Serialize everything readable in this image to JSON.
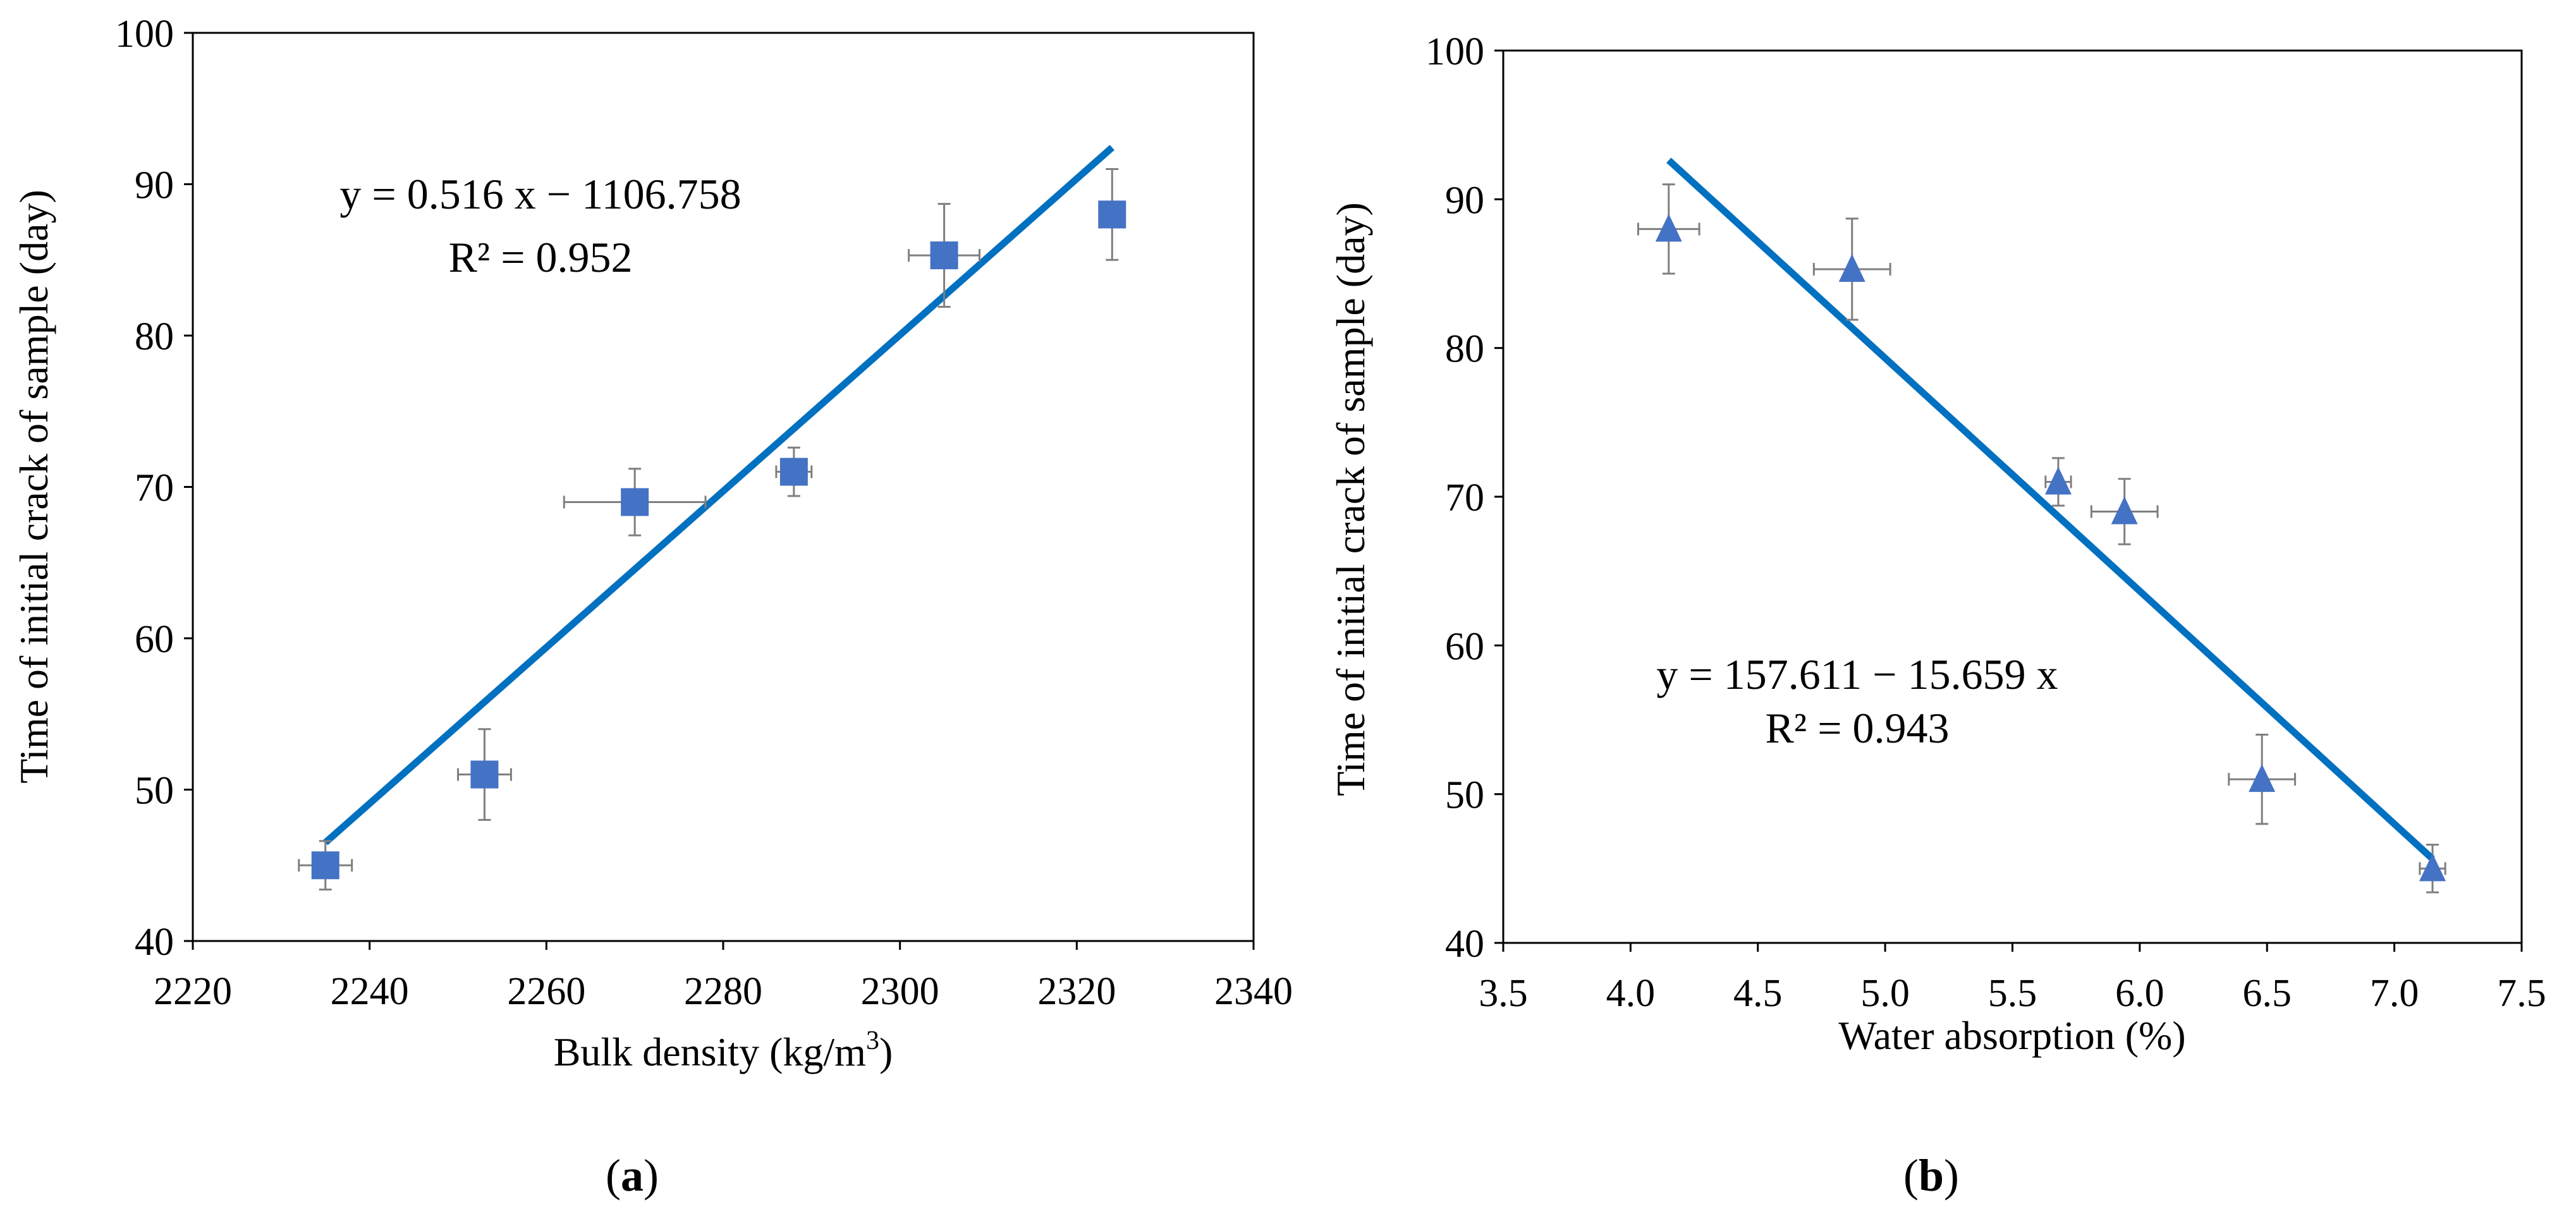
{
  "chart_data": [
    {
      "type": "scatter",
      "panel_label": "a",
      "xlabel_text": "Bulk density (kg/m",
      "xlabel_sup": "3",
      "xlabel_close": ")",
      "ylabel": "Time of initial crack of sample (day)",
      "xlim": [
        2220,
        2340
      ],
      "ylim": [
        40,
        100
      ],
      "xticks": [
        2220,
        2240,
        2260,
        2280,
        2300,
        2320,
        2340
      ],
      "yticks": [
        40,
        50,
        60,
        70,
        80,
        90,
        100
      ],
      "x_decimals": 0,
      "grid": false,
      "marker": "square",
      "marker_color": "#4472C4",
      "line_color": "#0070C0",
      "error_bar_color": "#7f7f7f",
      "points": [
        {
          "x": 2235,
          "y": 45,
          "xerr": 3,
          "yerr": 1.6
        },
        {
          "x": 2253,
          "y": 51,
          "xerr": 3,
          "yerr": 3
        },
        {
          "x": 2270,
          "y": 69,
          "xerr": 8,
          "yerr": 2.2
        },
        {
          "x": 2288,
          "y": 71,
          "xerr": 2,
          "yerr": 1.6
        },
        {
          "x": 2305,
          "y": 85.3,
          "xerr": 4,
          "yerr": 3.4
        },
        {
          "x": 2324,
          "y": 88,
          "xerr": 0,
          "yerr": 3
        }
      ],
      "trendline": {
        "x1": 2235,
        "x2": 2324,
        "slope": 0.516,
        "intercept": -1106.758
      },
      "equation": "y = 0.516 x − 1106.758",
      "r2_text": "R² = 0.952"
    },
    {
      "type": "scatter",
      "panel_label": "b",
      "xlabel_text": "Water absorption (%)",
      "xlabel_sup": "",
      "xlabel_close": "",
      "ylabel": "Time of initial crack of sample (day)",
      "xlim": [
        3.5,
        7.5
      ],
      "ylim": [
        40,
        100
      ],
      "xticks": [
        3.5,
        4.0,
        4.5,
        5.0,
        5.5,
        6.0,
        6.5,
        7.0,
        7.5
      ],
      "yticks": [
        40,
        50,
        60,
        70,
        80,
        90,
        100
      ],
      "x_decimals": 1,
      "grid": false,
      "marker": "triangle",
      "marker_color": "#4472C4",
      "line_color": "#0070C0",
      "error_bar_color": "#7f7f7f",
      "points": [
        {
          "x": 4.15,
          "y": 88,
          "xerr": 0.12,
          "yerr": 3
        },
        {
          "x": 4.87,
          "y": 85.3,
          "xerr": 0.15,
          "yerr": 3.4
        },
        {
          "x": 5.68,
          "y": 71,
          "xerr": 0.05,
          "yerr": 1.6
        },
        {
          "x": 5.94,
          "y": 69,
          "xerr": 0.13,
          "yerr": 2.2
        },
        {
          "x": 6.48,
          "y": 51,
          "xerr": 0.13,
          "yerr": 3
        },
        {
          "x": 7.15,
          "y": 45,
          "xerr": 0.05,
          "yerr": 1.6
        }
      ],
      "trendline": {
        "x1": 4.15,
        "x2": 7.15,
        "slope": -15.659,
        "intercept": 157.611
      },
      "equation": "y = 157.611 − 15.659 x",
      "r2_text": "R² = 0.943"
    }
  ]
}
